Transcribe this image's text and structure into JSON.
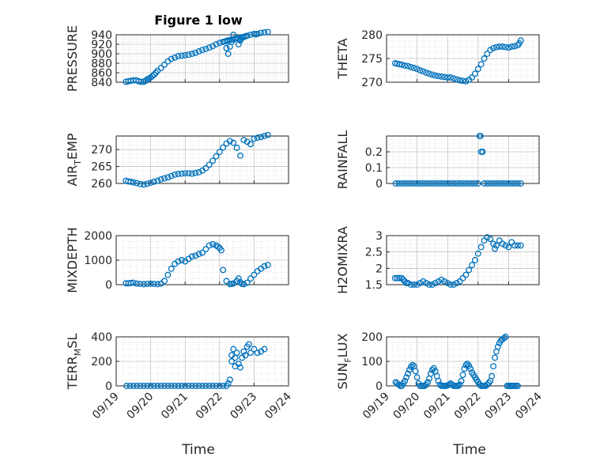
{
  "title": "Figure 1 low",
  "xlabel": "Time",
  "x_ticks": [
    "09/19",
    "09/20",
    "09/21",
    "09/22",
    "09/23",
    "09/24"
  ],
  "colors": {
    "marker": "#0072bd",
    "axes": "#262626"
  },
  "chart_data": [
    {
      "type": "scatter",
      "ylabel": "PRESSURE",
      "ylim": [
        840,
        940
      ],
      "yticks": [
        "940",
        "920",
        "900",
        "880",
        "860",
        "840"
      ],
      "x": [
        19.28,
        19.35,
        19.42,
        19.5,
        19.58,
        19.65,
        19.72,
        19.8,
        19.85,
        19.9,
        19.95,
        20.0,
        20.05,
        20.1,
        20.15,
        20.2,
        20.3,
        20.4,
        20.5,
        20.6,
        20.7,
        20.8,
        20.9,
        21.0,
        21.1,
        21.2,
        21.3,
        21.4,
        21.5,
        21.6,
        21.7,
        21.8,
        21.9,
        22.0,
        22.1,
        22.15,
        22.2,
        22.25,
        22.3,
        22.35,
        22.4,
        22.45,
        22.5,
        22.55,
        22.6,
        22.65,
        22.7,
        22.75,
        22.8,
        22.9,
        23.0,
        23.05,
        23.1,
        23.2,
        23.3,
        23.4,
        22.2,
        22.25,
        22.3,
        22.35,
        22.4,
        22.55,
        22.6,
        22.65
      ],
      "y": [
        841,
        842,
        843,
        844,
        844,
        842,
        841,
        841,
        843,
        846,
        848,
        850,
        853,
        856,
        860,
        864,
        870,
        877,
        884,
        889,
        892,
        895,
        896,
        897,
        898,
        900,
        902,
        905,
        908,
        910,
        913,
        916,
        920,
        923,
        925,
        926,
        927,
        928,
        929,
        930,
        930,
        932,
        933,
        932,
        931,
        934,
        935,
        937,
        938,
        940,
        942,
        941,
        942,
        944,
        945,
        946,
        912,
        900,
        915,
        925,
        940,
        920,
        928,
        935
      ]
    },
    {
      "type": "scatter",
      "ylabel": "THETA",
      "ylim": [
        270,
        280
      ],
      "yticks": [
        "280",
        "275",
        "270"
      ],
      "x": [
        19.28,
        19.35,
        19.42,
        19.5,
        19.6,
        19.7,
        19.8,
        19.9,
        20.0,
        20.1,
        20.2,
        20.3,
        20.4,
        20.5,
        20.6,
        20.7,
        20.8,
        20.9,
        21.0,
        21.1,
        21.2,
        21.3,
        21.4,
        21.5,
        21.6,
        21.7,
        21.8,
        21.9,
        22.0,
        22.1,
        22.2,
        22.3,
        22.4,
        22.5,
        22.6,
        22.7,
        22.8,
        22.9,
        23.0,
        23.1,
        23.2,
        23.3,
        23.35,
        23.4
      ],
      "y": [
        274,
        273.9,
        273.8,
        273.7,
        273.5,
        273.4,
        273.2,
        273,
        272.8,
        272.5,
        272.3,
        272,
        271.8,
        271.6,
        271.4,
        271.3,
        271.2,
        271.1,
        271,
        271,
        270.8,
        270.6,
        270.4,
        270.3,
        270.2,
        270.5,
        271,
        271.8,
        272.8,
        273.8,
        275,
        276,
        276.8,
        277.2,
        277.4,
        277.5,
        277.5,
        277.4,
        277.3,
        277.5,
        277.6,
        277.8,
        278.2,
        278.8
      ]
    },
    {
      "type": "scatter",
      "ylabel": "AIR_TEMP",
      "ylim": [
        260,
        274
      ],
      "yticks": [
        "270",
        "265",
        "260"
      ],
      "x": [
        19.28,
        19.35,
        19.42,
        19.5,
        19.6,
        19.7,
        19.8,
        19.9,
        20.0,
        20.1,
        20.2,
        20.3,
        20.4,
        20.5,
        20.6,
        20.7,
        20.8,
        20.9,
        21.0,
        21.1,
        21.2,
        21.3,
        21.4,
        21.5,
        21.6,
        21.7,
        21.8,
        21.9,
        22.0,
        22.1,
        22.2,
        22.3,
        22.4,
        22.5,
        22.6,
        22.7,
        22.8,
        22.9,
        23.0,
        23.1,
        23.2,
        23.3,
        23.4
      ],
      "y": [
        260.8,
        260.6,
        260.5,
        260.3,
        260.1,
        259.8,
        259.7,
        259.9,
        260.2,
        260.5,
        260.8,
        261.2,
        261.5,
        261.8,
        262.2,
        262.6,
        262.8,
        262.9,
        263,
        263,
        262.9,
        263.1,
        263.3,
        263.8,
        264.5,
        265.5,
        266.7,
        268,
        269.3,
        270.6,
        271.8,
        272.5,
        272,
        270.5,
        268.2,
        272.8,
        272.3,
        271.6,
        273.2,
        273.5,
        273.7,
        274,
        274.3
      ]
    },
    {
      "type": "scatter",
      "ylabel": "RAINFALL",
      "ylim": [
        0,
        0.3
      ],
      "yticks": [
        "0.2",
        "0.1",
        "0"
      ],
      "x": [
        19.3,
        19.4,
        19.5,
        19.6,
        19.7,
        19.8,
        19.9,
        20.0,
        20.1,
        20.2,
        20.3,
        20.4,
        20.5,
        20.6,
        20.7,
        20.8,
        20.9,
        21.0,
        21.1,
        21.2,
        21.3,
        21.4,
        21.5,
        21.6,
        21.7,
        21.8,
        21.9,
        22.0,
        22.05,
        22.08,
        22.1,
        22.15,
        22.2,
        22.3,
        22.4,
        22.5,
        22.6,
        22.7,
        22.8,
        22.9,
        23.0,
        23.1,
        23.2,
        23.3,
        23.4
      ],
      "y": [
        0,
        0,
        0,
        0,
        0,
        0,
        0,
        0,
        0,
        0,
        0,
        0,
        0,
        0,
        0,
        0,
        0,
        0,
        0,
        0,
        0,
        0,
        0,
        0,
        0,
        0,
        0,
        0,
        0.3,
        0.3,
        0.2,
        0.2,
        0,
        0,
        0,
        0,
        0,
        0,
        0,
        0,
        0,
        0,
        0,
        0,
        0
      ]
    },
    {
      "type": "scatter",
      "ylabel": "MIXDEPTH",
      "ylim": [
        0,
        2000
      ],
      "yticks": [
        "2000",
        "1000",
        "0"
      ],
      "x": [
        19.28,
        19.35,
        19.42,
        19.5,
        19.6,
        19.7,
        19.8,
        19.9,
        20.0,
        20.1,
        20.2,
        20.3,
        20.4,
        20.5,
        20.6,
        20.7,
        20.8,
        20.9,
        21.0,
        21.1,
        21.2,
        21.3,
        21.4,
        21.5,
        21.6,
        21.7,
        21.8,
        21.9,
        21.95,
        22.0,
        22.05,
        22.1,
        22.2,
        22.3,
        22.35,
        22.4,
        22.5,
        22.55,
        22.6,
        22.65,
        22.7,
        22.8,
        22.9,
        23.0,
        23.1,
        23.2,
        23.3,
        23.4
      ],
      "y": [
        60,
        50,
        70,
        80,
        40,
        30,
        20,
        30,
        40,
        30,
        20,
        40,
        150,
        400,
        650,
        850,
        950,
        1000,
        950,
        1050,
        1150,
        1180,
        1250,
        1300,
        1450,
        1600,
        1650,
        1600,
        1550,
        1500,
        1400,
        600,
        150,
        20,
        30,
        50,
        150,
        250,
        100,
        30,
        20,
        80,
        250,
        400,
        550,
        650,
        750,
        800
      ]
    },
    {
      "type": "scatter",
      "ylabel": "H2OMIXRA",
      "ylim": [
        1.5,
        3
      ],
      "yticks": [
        "3",
        "2.5",
        "2",
        "1.5"
      ],
      "x": [
        19.28,
        19.35,
        19.42,
        19.5,
        19.55,
        19.6,
        19.65,
        19.7,
        19.8,
        19.9,
        20.0,
        20.1,
        20.2,
        20.3,
        20.4,
        20.5,
        20.6,
        20.7,
        20.8,
        20.9,
        21.0,
        21.1,
        21.2,
        21.3,
        21.4,
        21.5,
        21.6,
        21.7,
        21.8,
        21.9,
        22.0,
        22.1,
        22.2,
        22.3,
        22.4,
        22.5,
        22.55,
        22.6,
        22.7,
        22.8,
        22.9,
        23.0,
        23.1,
        23.2,
        23.3,
        23.4
      ],
      "y": [
        1.7,
        1.7,
        1.7,
        1.7,
        1.65,
        1.6,
        1.55,
        1.55,
        1.5,
        1.5,
        1.5,
        1.55,
        1.6,
        1.55,
        1.5,
        1.5,
        1.55,
        1.6,
        1.65,
        1.6,
        1.55,
        1.5,
        1.5,
        1.55,
        1.6,
        1.7,
        1.8,
        1.95,
        2.1,
        2.25,
        2.45,
        2.65,
        2.85,
        2.95,
        2.9,
        2.75,
        2.6,
        2.7,
        2.85,
        2.75,
        2.7,
        2.65,
        2.8,
        2.7,
        2.7,
        2.7
      ]
    },
    {
      "type": "scatter",
      "ylabel": "TERR_MSL",
      "ylim": [
        0,
        400
      ],
      "yticks": [
        "400",
        "200",
        "0"
      ],
      "x": [
        19.3,
        19.4,
        19.5,
        19.6,
        19.7,
        19.8,
        19.9,
        20.0,
        20.1,
        20.2,
        20.3,
        20.4,
        20.5,
        20.6,
        20.7,
        20.8,
        20.9,
        21.0,
        21.1,
        21.2,
        21.3,
        21.4,
        21.5,
        21.6,
        21.7,
        21.8,
        21.9,
        22.0,
        22.1,
        22.2,
        22.25,
        22.3,
        22.35,
        22.4,
        22.45,
        22.5,
        22.55,
        22.6,
        22.65,
        22.7,
        22.75,
        22.8,
        22.85,
        22.9,
        23.0,
        23.1,
        23.2,
        23.3,
        22.35,
        22.45
      ],
      "y": [
        0,
        0,
        0,
        0,
        0,
        0,
        0,
        0,
        0,
        0,
        0,
        0,
        0,
        0,
        0,
        0,
        0,
        0,
        0,
        0,
        0,
        0,
        0,
        0,
        0,
        0,
        0,
        0,
        0,
        0,
        20,
        50,
        200,
        300,
        230,
        270,
        180,
        150,
        230,
        280,
        250,
        320,
        340,
        270,
        300,
        270,
        280,
        300,
        250,
        160
      ]
    },
    {
      "type": "scatter",
      "ylabel": "SUN_FLUX",
      "ylim": [
        0,
        200
      ],
      "yticks": [
        "200",
        "100",
        "0"
      ],
      "x": [
        19.3,
        19.35,
        19.4,
        19.45,
        19.5,
        19.55,
        19.6,
        19.65,
        19.7,
        19.75,
        19.8,
        19.85,
        19.9,
        19.95,
        20.0,
        20.05,
        20.1,
        20.15,
        20.2,
        20.25,
        20.3,
        20.35,
        20.4,
        20.45,
        20.5,
        20.55,
        20.6,
        20.65,
        20.7,
        20.75,
        20.8,
        20.85,
        20.9,
        20.95,
        21.0,
        21.05,
        21.1,
        21.15,
        21.2,
        21.25,
        21.3,
        21.35,
        21.4,
        21.45,
        21.5,
        21.55,
        21.6,
        21.65,
        21.7,
        21.75,
        21.8,
        21.85,
        21.9,
        21.95,
        22.0,
        22.05,
        22.1,
        22.15,
        22.2,
        22.25,
        22.3,
        22.35,
        22.4,
        22.45,
        22.5,
        22.55,
        22.6,
        22.65,
        22.7,
        22.75,
        22.8,
        22.85,
        22.9,
        22.95,
        23.0,
        23.05,
        23.1,
        23.15,
        23.2,
        23.25,
        23.3
      ],
      "y": [
        15,
        10,
        5,
        0,
        0,
        10,
        20,
        35,
        50,
        65,
        78,
        85,
        80,
        60,
        35,
        10,
        0,
        0,
        0,
        0,
        5,
        15,
        30,
        50,
        65,
        72,
        60,
        40,
        20,
        5,
        0,
        0,
        0,
        0,
        2,
        5,
        10,
        5,
        0,
        0,
        0,
        0,
        5,
        20,
        45,
        70,
        85,
        90,
        82,
        70,
        55,
        45,
        35,
        25,
        15,
        5,
        0,
        0,
        0,
        0,
        5,
        12,
        20,
        40,
        80,
        115,
        140,
        160,
        175,
        185,
        190,
        195,
        200,
        0,
        0,
        0,
        0,
        0,
        0,
        0,
        0
      ]
    }
  ]
}
